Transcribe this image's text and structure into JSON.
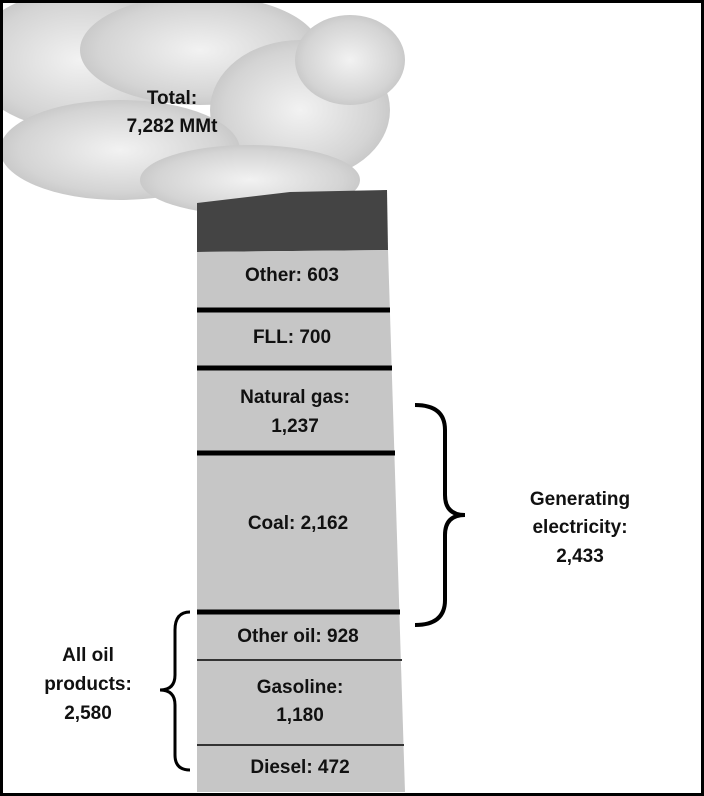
{
  "total": {
    "lines": [
      "Total:",
      "7,282 MMt"
    ]
  },
  "segments": [
    {
      "lines": [
        "Other:  603"
      ]
    },
    {
      "lines": [
        "FLL:  700"
      ]
    },
    {
      "lines": [
        "Natural gas:",
        "1,237"
      ]
    },
    {
      "lines": [
        "Coal:  2,162"
      ]
    },
    {
      "lines": [
        "Other oil:  928"
      ]
    },
    {
      "lines": [
        "Gasoline:",
        "1,180"
      ]
    },
    {
      "lines": [
        "Diesel:  472"
      ]
    }
  ],
  "groups": [
    {
      "lines": [
        "Generating",
        "electricity:",
        "2,433"
      ]
    },
    {
      "lines": [
        "All oil",
        "products:",
        "2,580"
      ]
    }
  ]
}
